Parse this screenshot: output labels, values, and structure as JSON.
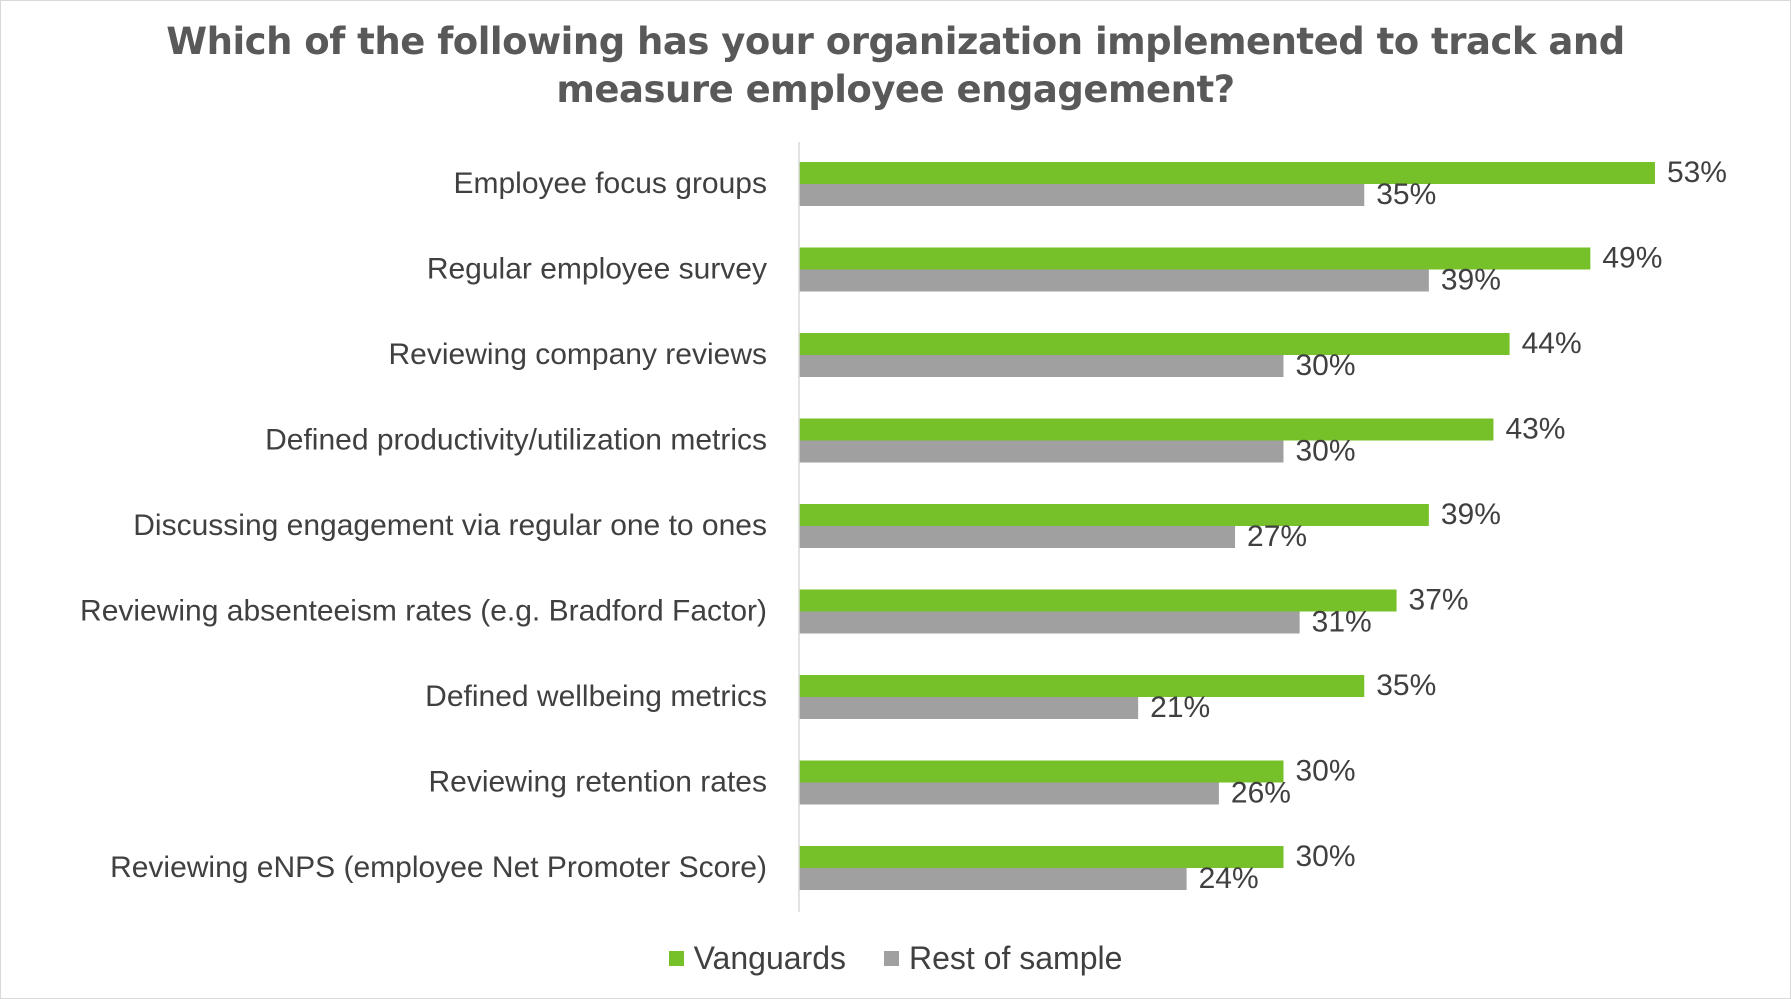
{
  "chart_data": {
    "type": "bar",
    "orientation": "horizontal",
    "title": "Which of the following has your organization implemented to track and measure employee engagement?",
    "title_lines": [
      "Which of the following has your organization implemented to track and",
      "measure employee engagement?"
    ],
    "categories": [
      "Employee focus groups",
      "Regular employee survey",
      "Reviewing company reviews",
      "Defined productivity/utilization metrics",
      "Discussing engagement via regular one to ones",
      "Reviewing absenteeism rates (e.g. Bradford Factor)",
      "Defined wellbeing metrics",
      "Reviewing retention rates",
      "Reviewing eNPS (employee Net Promoter Score)"
    ],
    "series": [
      {
        "name": "Vanguards",
        "color": "#76c02a",
        "values": [
          53,
          49,
          44,
          43,
          39,
          37,
          35,
          30,
          30
        ],
        "labels": [
          "53%",
          "49%",
          "44%",
          "43%",
          "39%",
          "37%",
          "35%",
          "30%",
          "30%"
        ]
      },
      {
        "name": "Rest of sample",
        "color": "#a0a0a0",
        "values": [
          35,
          39,
          30,
          30,
          27,
          31,
          21,
          26,
          24
        ],
        "labels": [
          "35%",
          "39%",
          "30%",
          "30%",
          "27%",
          "31%",
          "21%",
          "26%",
          "24%"
        ]
      }
    ],
    "value_unit": "%",
    "xlim": [
      0,
      62
    ],
    "grid": false,
    "legend_position": "bottom"
  }
}
